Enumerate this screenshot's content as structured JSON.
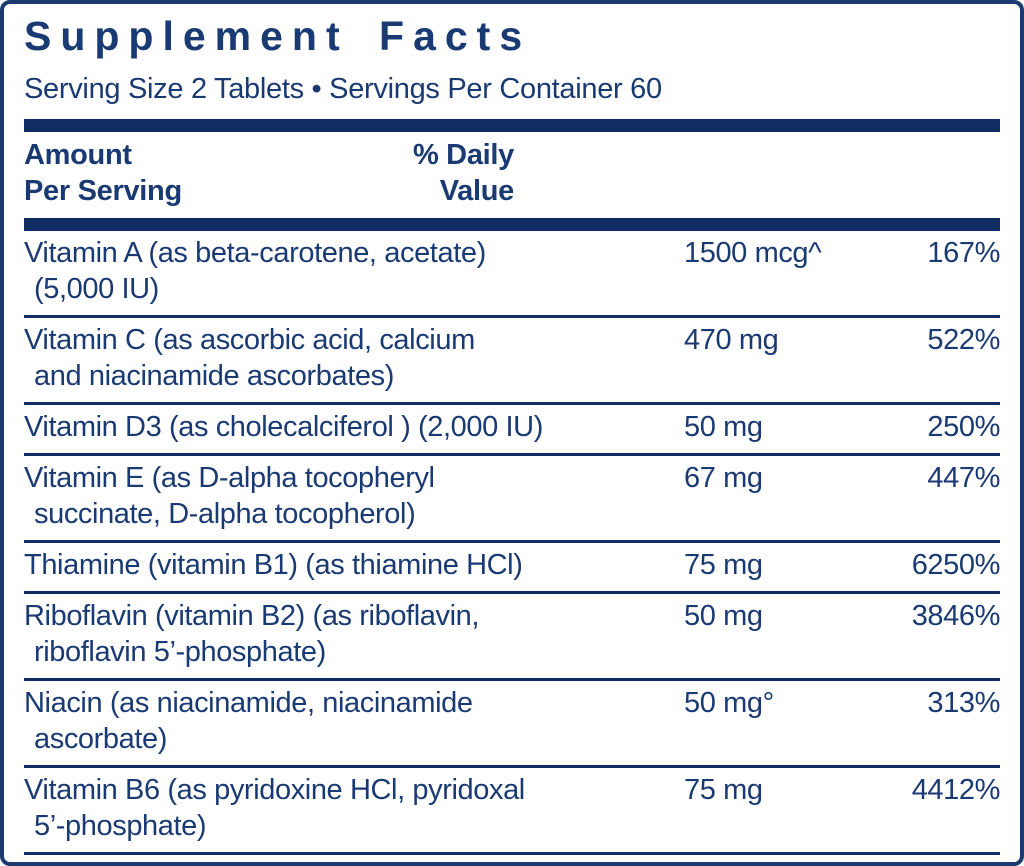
{
  "label": {
    "title": "Supplement Facts",
    "serving_line": "Serving Size 2 Tablets • Servings Per Container 60",
    "header": {
      "amount_line1": "Amount",
      "amount_line2": "Per Serving",
      "dv_line1": "% Daily",
      "dv_line2": "Value"
    },
    "colors": {
      "navy_text": "#1a3a73",
      "navy_bar": "#0f2d63",
      "border": "#1c3a6e",
      "background": "#ffffff"
    },
    "rows": [
      {
        "name1": "Vitamin A (as beta-carotene, acetate)",
        "name2": "(5,000 IU)",
        "amount": "1500 mcg^",
        "daily_value": "167%"
      },
      {
        "name1": "Vitamin C (as ascorbic acid, calcium",
        "name2": "and niacinamide ascorbates)",
        "amount": "470 mg",
        "daily_value": "522%"
      },
      {
        "name1": "Vitamin D3 (as cholecalciferol ) (2,000 IU)",
        "name2": "",
        "amount": "50 mg",
        "daily_value": "250%"
      },
      {
        "name1": "Vitamin E (as D-alpha tocopheryl",
        "name2": "succinate, D-alpha tocopherol)",
        "amount": "67 mg",
        "daily_value": "447%"
      },
      {
        "name1": "Thiamine (vitamin B1) (as thiamine HCl)",
        "name2": "",
        "amount": "75 mg",
        "daily_value": "6250%"
      },
      {
        "name1": "Riboflavin (vitamin B2) (as riboflavin,",
        "name2": "riboflavin 5’-phosphate)",
        "amount": "50 mg",
        "daily_value": "3846%"
      },
      {
        "name1": "Niacin (as niacinamide, niacinamide",
        "name2": "ascorbate)",
        "amount": "50 mg°",
        "daily_value": "313%"
      },
      {
        "name1": "Vitamin B6 (as pyridoxine HCl, pyridoxal",
        "name2": "5’-phosphate)",
        "amount": "75 mg",
        "daily_value": "4412%"
      }
    ]
  }
}
